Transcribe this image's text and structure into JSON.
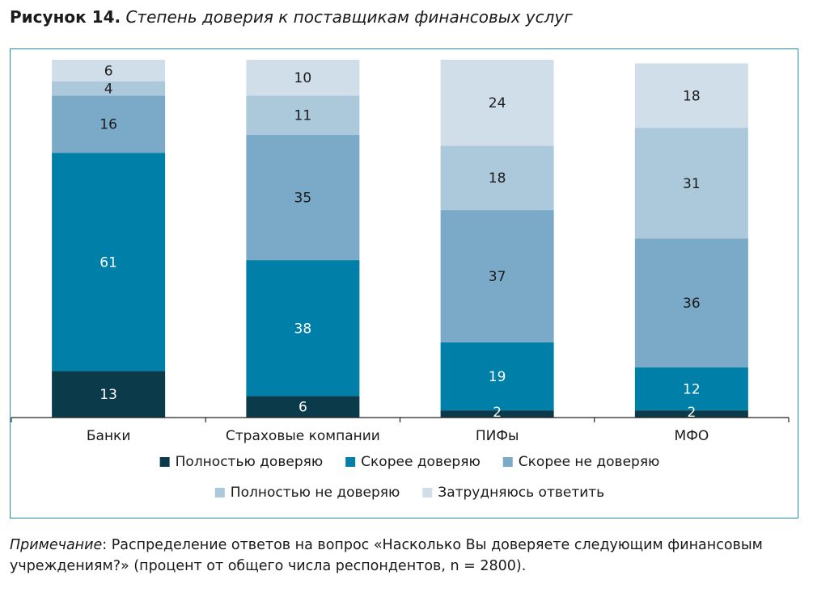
{
  "figure": {
    "number": "Рисунок 14.",
    "caption": "Степень доверия к поставщикам финансовых услуг"
  },
  "note": {
    "label": "Примечание",
    "text": ": Распределение ответов на вопрос «Насколько Вы доверяете следующим финансовым учреждениям?» (процент от общего числа респондентов, n = 2800)."
  },
  "chart_data": {
    "type": "bar",
    "stacked": true,
    "title": "",
    "xlabel": "",
    "ylabel": "",
    "ylim": [
      0,
      100
    ],
    "grid": false,
    "legend_position": "bottom",
    "categories": [
      "Банки",
      "Страховые компании",
      "ПИФы",
      "МФО"
    ],
    "series": [
      {
        "name": "Полностью доверяю",
        "color": "#0b3a4a",
        "label_color": "#ffffff",
        "values": [
          13,
          6,
          2,
          2
        ]
      },
      {
        "name": "Скорее доверяю",
        "color": "#0080a8",
        "label_color": "#ffffff",
        "values": [
          61,
          38,
          19,
          12
        ]
      },
      {
        "name": "Скорее не доверяю",
        "color": "#7aaac8",
        "label_color": "#1a1a1a",
        "values": [
          16,
          35,
          37,
          36
        ]
      },
      {
        "name": "Полностью не доверяю",
        "color": "#abc9db",
        "label_color": "#1a1a1a",
        "values": [
          4,
          11,
          18,
          31
        ]
      },
      {
        "name": "Затрудняюсь ответить",
        "color": "#d0dee9",
        "label_color": "#1a1a1a",
        "values": [
          6,
          10,
          24,
          18
        ]
      }
    ]
  }
}
